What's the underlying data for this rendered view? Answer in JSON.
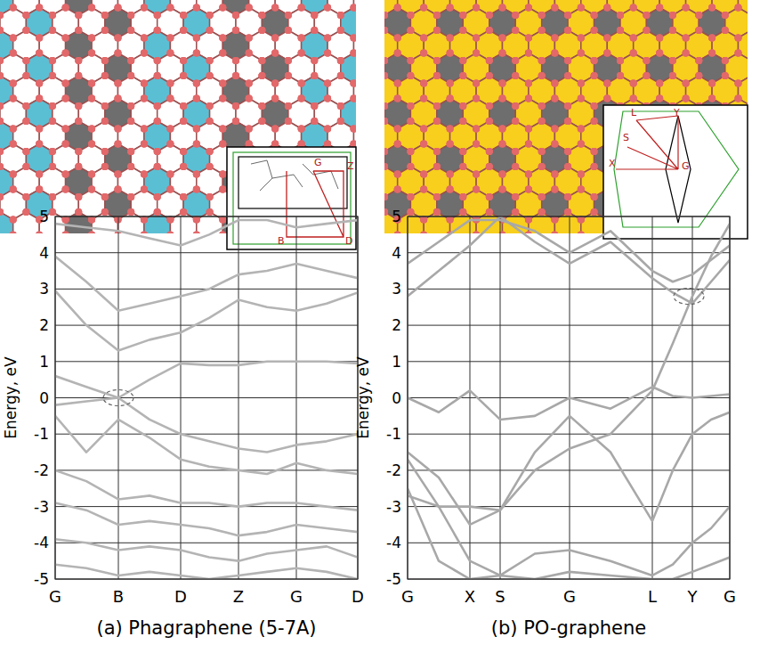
{
  "chart_data": [
    {
      "type": "line",
      "title": "(a) Phagraphene (5-7A)",
      "ylabel": "Energy, eV",
      "x": [
        0,
        35,
        71,
        106,
        141,
        173,
        206,
        238,
        271,
        305,
        340
      ],
      "xlim": [
        0,
        340
      ],
      "xticks": [
        {
          "value": 0,
          "label": "G"
        },
        {
          "value": 71,
          "label": "B"
        },
        {
          "value": 141,
          "label": "D"
        },
        {
          "value": 206,
          "label": "Z"
        },
        {
          "value": 271,
          "label": "G"
        },
        {
          "value": 340,
          "label": "D"
        }
      ],
      "ylim": [
        -5,
        5
      ],
      "yticks": [
        -5,
        -4,
        -3,
        -2,
        -1,
        0,
        1,
        2,
        3,
        4,
        5
      ],
      "grid": true,
      "annotations": [
        "G",
        "Z",
        "B",
        "D"
      ],
      "highlight": {
        "x": 71,
        "y": 0
      },
      "series": [
        {
          "color": "#b4b4b4",
          "values": [
            0.6,
            0.3,
            0.0,
            0.5,
            0.95,
            0.9,
            0.9,
            1.0,
            1.0,
            1.0,
            0.95
          ]
        },
        {
          "color": "#b4b4b4",
          "values": [
            2.95,
            2.0,
            1.3,
            1.6,
            1.8,
            2.2,
            2.7,
            2.5,
            2.4,
            2.6,
            2.9
          ]
        },
        {
          "color": "#b4b4b4",
          "values": [
            3.9,
            3.2,
            2.4,
            2.6,
            2.8,
            3.0,
            3.4,
            3.5,
            3.7,
            3.5,
            3.3
          ]
        },
        {
          "color": "#b4b4b4",
          "values": [
            4.8,
            4.7,
            4.6,
            4.4,
            4.2,
            4.5,
            4.9,
            4.9,
            4.7,
            4.8,
            4.9
          ]
        },
        {
          "color": "#b4b4b4",
          "values": [
            -0.2,
            -0.1,
            0.0,
            -0.6,
            -1.0,
            -1.2,
            -1.4,
            -1.5,
            -1.3,
            -1.2,
            -1.0
          ]
        },
        {
          "color": "#b4b4b4",
          "values": [
            -0.5,
            -1.5,
            -0.6,
            -1.1,
            -1.7,
            -1.9,
            -2.0,
            -2.1,
            -1.8,
            -2.0,
            -2.1
          ]
        },
        {
          "color": "#b4b4b4",
          "values": [
            -2.0,
            -2.3,
            -2.8,
            -2.7,
            -2.9,
            -2.9,
            -3.0,
            -2.9,
            -2.9,
            -3.0,
            -3.1
          ]
        },
        {
          "color": "#b4b4b4",
          "values": [
            -2.9,
            -3.1,
            -3.5,
            -3.4,
            -3.5,
            -3.6,
            -3.8,
            -3.7,
            -3.5,
            -3.6,
            -3.7
          ]
        },
        {
          "color": "#b4b4b4",
          "values": [
            -3.9,
            -4.0,
            -4.2,
            -4.1,
            -4.2,
            -4.4,
            -4.5,
            -4.3,
            -4.2,
            -4.1,
            -4.4
          ]
        },
        {
          "color": "#b4b4b4",
          "values": [
            -4.6,
            -4.7,
            -4.9,
            -4.8,
            -4.9,
            -5.0,
            -4.9,
            -4.8,
            -4.7,
            -4.8,
            -5.0
          ]
        }
      ]
    },
    {
      "type": "line",
      "title": "(b) PO-graphene",
      "ylabel": "Energy, eV",
      "x": [
        0,
        35,
        70,
        104,
        143,
        182,
        228,
        275,
        298,
        320,
        341,
        362
      ],
      "xlim": [
        0,
        362
      ],
      "xticks": [
        {
          "value": 0,
          "label": "G"
        },
        {
          "value": 70,
          "label": "X"
        },
        {
          "value": 104,
          "label": "S"
        },
        {
          "value": 182,
          "label": "G"
        },
        {
          "value": 275,
          "label": "L"
        },
        {
          "value": 320,
          "label": "Y"
        },
        {
          "value": 362,
          "label": "G"
        }
      ],
      "ylim": [
        -5,
        5
      ],
      "yticks": [
        -5,
        -4,
        -3,
        -2,
        -1,
        0,
        1,
        2,
        3,
        4,
        5
      ],
      "grid": true,
      "annotations": [
        "L",
        "Y",
        "S",
        "X",
        "G"
      ],
      "highlight": {
        "x": 316,
        "y": 2.8
      },
      "series": [
        {
          "color": "#a8a8a8",
          "values": [
            0.0,
            -0.4,
            0.2,
            -0.6,
            -0.5,
            0.0,
            -0.3,
            0.3,
            0.05,
            0.0,
            0.05,
            0.1
          ]
        },
        {
          "color": "#a8a8a8",
          "values": [
            -1.5,
            -2.2,
            -3.5,
            -3.1,
            -1.5,
            -0.5,
            -1.5,
            -3.4,
            -2.0,
            -1.0,
            -0.6,
            -0.4
          ]
        },
        {
          "color": "#a8a8a8",
          "values": [
            -2.7,
            -3.0,
            -3.0,
            -3.1,
            -2.0,
            -1.4,
            -1.0,
            0.2,
            1.5,
            2.8,
            3.9,
            4.8
          ]
        },
        {
          "color": "#a8a8a8",
          "values": [
            2.8,
            3.5,
            4.2,
            5.0,
            4.3,
            3.7,
            4.3,
            3.3,
            2.9,
            2.6,
            3.2,
            3.8
          ]
        },
        {
          "color": "#a8a8a8",
          "values": [
            3.7,
            4.3,
            4.9,
            4.9,
            4.6,
            4.0,
            4.6,
            3.5,
            3.2,
            3.4,
            3.8,
            4.2
          ]
        },
        {
          "color": "#a8a8a8",
          "values": [
            -1.7,
            -3.0,
            -4.5,
            -4.9,
            -4.3,
            -4.2,
            -4.5,
            -4.9,
            -4.6,
            -4.0,
            -3.6,
            -3.0
          ]
        },
        {
          "color": "#a8a8a8",
          "values": [
            -2.5,
            -4.5,
            -5.0,
            -4.9,
            -5.0,
            -4.8,
            -4.9,
            -5.0,
            -5.0,
            -4.8,
            -4.6,
            -4.4
          ]
        }
      ]
    }
  ]
}
